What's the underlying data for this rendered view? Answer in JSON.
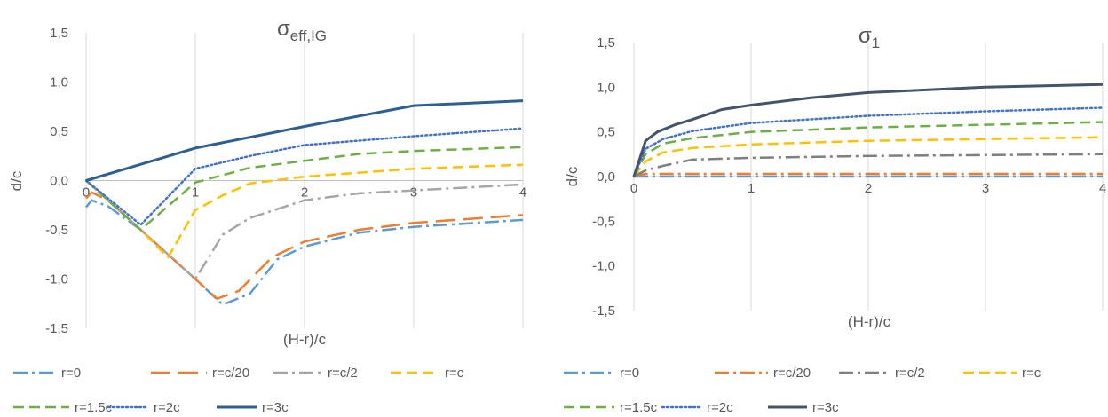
{
  "chart_data": [
    {
      "type": "line",
      "title": "σ",
      "title_subscript": "eff,IG",
      "xlabel": "(H-r)/c",
      "ylabel": "d/c",
      "xlim": [
        0,
        4
      ],
      "ylim": [
        -1.5,
        1.5
      ],
      "xticks": [
        "0",
        "1",
        "2",
        "3",
        "4"
      ],
      "yticks": [
        "1,5",
        "1,0",
        "0,5",
        "0,0",
        "-0,5",
        "-1,0",
        "-1,5"
      ],
      "grid": "vertical",
      "legend_position": "bottom",
      "series": [
        {
          "name": "r=0",
          "color": "#5b9bd5",
          "dash": "dashdot",
          "points": [
            [
              0,
              -0.27
            ],
            [
              0.05,
              -0.2
            ],
            [
              0.2,
              -0.26
            ],
            [
              0.5,
              -0.5
            ],
            [
              1,
              -1.0
            ],
            [
              1.25,
              -1.26
            ],
            [
              1.5,
              -1.15
            ],
            [
              1.75,
              -0.8
            ],
            [
              2,
              -0.67
            ],
            [
              2.5,
              -0.53
            ],
            [
              3,
              -0.47
            ],
            [
              4,
              -0.4
            ]
          ]
        },
        {
          "name": "r=c/20",
          "color": "#ed7d31",
          "dash": "longdash",
          "points": [
            [
              0,
              -0.18
            ],
            [
              0.05,
              -0.12
            ],
            [
              0.2,
              -0.2
            ],
            [
              0.5,
              -0.5
            ],
            [
              1,
              -1.0
            ],
            [
              1.2,
              -1.2
            ],
            [
              1.4,
              -1.12
            ],
            [
              1.7,
              -0.78
            ],
            [
              2,
              -0.62
            ],
            [
              2.5,
              -0.5
            ],
            [
              3,
              -0.43
            ],
            [
              4,
              -0.35
            ]
          ]
        },
        {
          "name": "r=c/2",
          "color": "#a5a5a5",
          "dash": "dashdot",
          "points": [
            [
              0,
              0
            ],
            [
              0.5,
              -0.5
            ],
            [
              1,
              -1.0
            ],
            [
              1.25,
              -0.55
            ],
            [
              1.5,
              -0.38
            ],
            [
              2,
              -0.2
            ],
            [
              2.5,
              -0.13
            ],
            [
              3,
              -0.1
            ],
            [
              4,
              -0.04
            ]
          ]
        },
        {
          "name": "r=c",
          "color": "#ffc000",
          "dash": "dash",
          "points": [
            [
              0,
              0
            ],
            [
              0.5,
              -0.5
            ],
            [
              0.75,
              -0.78
            ],
            [
              1,
              -0.3
            ],
            [
              1.25,
              -0.15
            ],
            [
              1.5,
              -0.03
            ],
            [
              2,
              0.04
            ],
            [
              3,
              0.12
            ],
            [
              4,
              0.16
            ]
          ]
        },
        {
          "name": "r=1.5c",
          "color": "#70ad47",
          "dash": "dash",
          "points": [
            [
              0,
              0
            ],
            [
              0.5,
              -0.5
            ],
            [
              1,
              -0.02
            ],
            [
              1.5,
              0.13
            ],
            [
              2,
              0.2
            ],
            [
              2.5,
              0.27
            ],
            [
              3,
              0.3
            ],
            [
              4,
              0.34
            ]
          ]
        },
        {
          "name": "r=2c",
          "color": "#4472c4",
          "dash": "dot",
          "points": [
            [
              0,
              0
            ],
            [
              0.5,
              -0.45
            ],
            [
              1,
              0.12
            ],
            [
              1.5,
              0.25
            ],
            [
              2,
              0.36
            ],
            [
              3,
              0.45
            ],
            [
              4,
              0.53
            ]
          ]
        },
        {
          "name": "r=3c",
          "color": "#2e5f93",
          "dash": "solid",
          "points": [
            [
              0,
              0
            ],
            [
              1,
              0.33
            ],
            [
              2,
              0.55
            ],
            [
              3,
              0.76
            ],
            [
              4,
              0.81
            ]
          ]
        }
      ]
    },
    {
      "type": "line",
      "title": "σ",
      "title_subscript": "1",
      "xlabel": "(H-r)/c",
      "ylabel": "d/c",
      "xlim": [
        0,
        4
      ],
      "ylim": [
        -1.5,
        1.5
      ],
      "xticks": [
        "0",
        "1",
        "2",
        "3",
        "4"
      ],
      "yticks": [
        "1,5",
        "1,0",
        "0,5",
        "0,0",
        "-0,5",
        "-1,0",
        "-1,5"
      ],
      "grid": "vertical",
      "legend_position": "bottom",
      "series": [
        {
          "name": "r=0",
          "color": "#5b9bd5",
          "dash": "dashdot",
          "points": [
            [
              0,
              0
            ],
            [
              0.1,
              0
            ],
            [
              4,
              0
            ]
          ]
        },
        {
          "name": "r=c/20",
          "color": "#ed7d31",
          "dash": "dashdot",
          "points": [
            [
              0,
              0
            ],
            [
              0.1,
              0.03
            ],
            [
              0.3,
              0.03
            ],
            [
              1,
              0.03
            ],
            [
              2,
              0.03
            ],
            [
              4,
              0.03
            ]
          ]
        },
        {
          "name": "r=c/2",
          "color": "#7f7f7f",
          "dash": "dashdot",
          "points": [
            [
              0,
              0
            ],
            [
              0.1,
              0.07
            ],
            [
              0.25,
              0.12
            ],
            [
              0.5,
              0.19
            ],
            [
              1,
              0.21
            ],
            [
              2,
              0.23
            ],
            [
              3,
              0.24
            ],
            [
              4,
              0.25
            ]
          ]
        },
        {
          "name": "r=c",
          "color": "#ffc000",
          "dash": "dash",
          "points": [
            [
              0,
              0
            ],
            [
              0.1,
              0.17
            ],
            [
              0.25,
              0.27
            ],
            [
              0.5,
              0.32
            ],
            [
              1,
              0.36
            ],
            [
              2,
              0.4
            ],
            [
              3,
              0.42
            ],
            [
              4,
              0.44
            ]
          ]
        },
        {
          "name": "r=1.5c",
          "color": "#70ad47",
          "dash": "dash",
          "points": [
            [
              0,
              0
            ],
            [
              0.1,
              0.25
            ],
            [
              0.25,
              0.37
            ],
            [
              0.5,
              0.43
            ],
            [
              1,
              0.5
            ],
            [
              2,
              0.55
            ],
            [
              3,
              0.58
            ],
            [
              4,
              0.61
            ]
          ]
        },
        {
          "name": "r=2c",
          "color": "#4472c4",
          "dash": "dot",
          "points": [
            [
              0,
              0
            ],
            [
              0.1,
              0.31
            ],
            [
              0.25,
              0.42
            ],
            [
              0.5,
              0.51
            ],
            [
              1,
              0.6
            ],
            [
              2,
              0.68
            ],
            [
              3,
              0.73
            ],
            [
              4,
              0.77
            ]
          ]
        },
        {
          "name": "r=3c",
          "color": "#44546a",
          "dash": "solid",
          "points": [
            [
              0,
              0
            ],
            [
              0.1,
              0.4
            ],
            [
              0.2,
              0.5
            ],
            [
              0.35,
              0.58
            ],
            [
              0.5,
              0.64
            ],
            [
              0.75,
              0.75
            ],
            [
              1,
              0.8
            ],
            [
              1.5,
              0.88
            ],
            [
              2,
              0.94
            ],
            [
              3,
              1.0
            ],
            [
              4,
              1.03
            ]
          ]
        }
      ]
    }
  ]
}
